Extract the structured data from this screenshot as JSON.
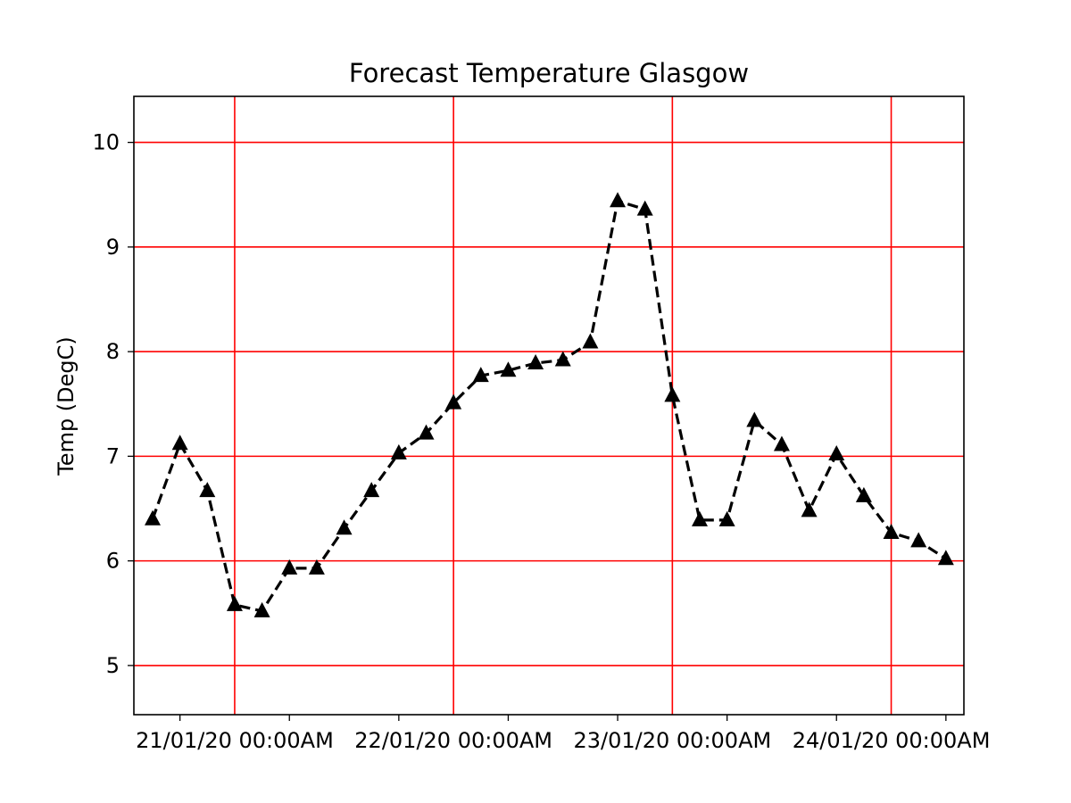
{
  "chart_data": {
    "type": "line",
    "title": "Forecast Temperature Glasgow",
    "xlabel": "",
    "ylabel": "Temp (DegC)",
    "x_tick_labels": [
      "21/01/20 00:00AM",
      "22/01/20 00:00AM",
      "23/01/20 00:00AM",
      "24/01/20 00:00AM"
    ],
    "y_tick_labels": [
      "5",
      "6",
      "7",
      "8",
      "9",
      "10"
    ],
    "ylim": [
      4.53,
      10.44
    ],
    "grid": true,
    "grid_color": "#ff0000",
    "series": [
      {
        "color": "#000000",
        "linestyle": "dashed",
        "marker": "triangle",
        "x": [
          "20/01/20 15:00",
          "20/01/20 18:00",
          "20/01/20 21:00",
          "21/01/20 00:00",
          "21/01/20 03:00",
          "21/01/20 06:00",
          "21/01/20 09:00",
          "21/01/20 12:00",
          "21/01/20 15:00",
          "21/01/20 18:00",
          "21/01/20 21:00",
          "22/01/20 00:00",
          "22/01/20 03:00",
          "22/01/20 06:00",
          "22/01/20 09:00",
          "22/01/20 12:00",
          "22/01/20 15:00",
          "22/01/20 18:00",
          "22/01/20 21:00",
          "23/01/20 00:00",
          "23/01/20 03:00",
          "23/01/20 06:00",
          "23/01/20 09:00",
          "23/01/20 12:00",
          "23/01/20 15:00",
          "23/01/20 18:00",
          "23/01/20 21:00",
          "24/01/20 00:00",
          "24/01/20 03:00",
          "24/01/20 06:00"
        ],
        "values": [
          6.4,
          7.12,
          6.67,
          5.58,
          5.52,
          5.93,
          5.93,
          6.31,
          6.67,
          7.03,
          7.22,
          7.51,
          7.77,
          7.82,
          7.89,
          7.92,
          8.09,
          9.44,
          9.36,
          7.58,
          6.39,
          6.39,
          7.34,
          7.11,
          6.48,
          7.02,
          6.62,
          6.27,
          6.19,
          6.02
        ]
      }
    ]
  }
}
